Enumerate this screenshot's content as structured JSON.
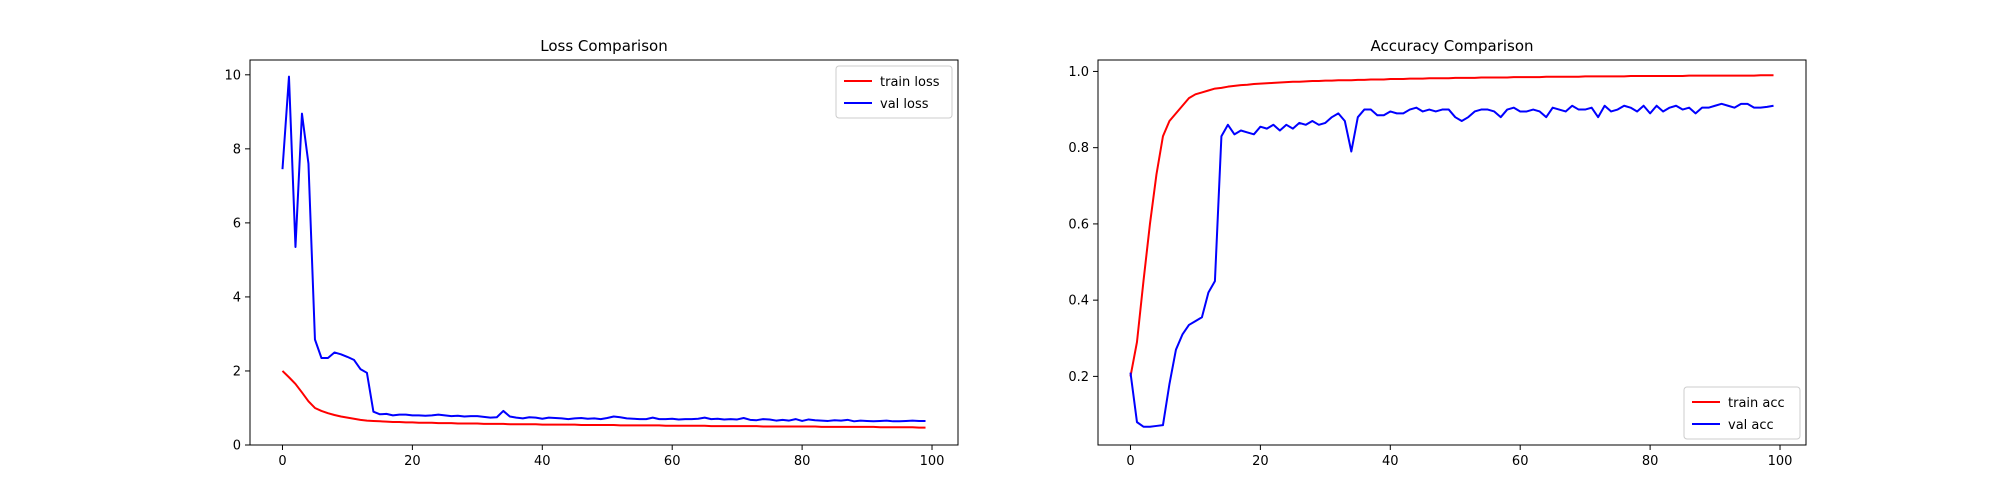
{
  "chart_data": [
    {
      "type": "line",
      "title": "Loss Comparison",
      "xlabel": "",
      "ylabel": "",
      "xlim": [
        -5,
        104
      ],
      "ylim": [
        0,
        10.4
      ],
      "xticks": [
        0,
        20,
        40,
        60,
        80,
        100
      ],
      "yticks": [
        0,
        2,
        4,
        6,
        8,
        10
      ],
      "legend_position": "top-right",
      "grid": false,
      "x": [
        0,
        1,
        2,
        3,
        4,
        5,
        6,
        7,
        8,
        9,
        10,
        11,
        12,
        13,
        14,
        15,
        16,
        17,
        18,
        19,
        20,
        21,
        22,
        23,
        24,
        25,
        26,
        27,
        28,
        29,
        30,
        31,
        32,
        33,
        34,
        35,
        36,
        37,
        38,
        39,
        40,
        41,
        42,
        43,
        44,
        45,
        46,
        47,
        48,
        49,
        50,
        51,
        52,
        53,
        54,
        55,
        56,
        57,
        58,
        59,
        60,
        61,
        62,
        63,
        64,
        65,
        66,
        67,
        68,
        69,
        70,
        71,
        72,
        73,
        74,
        75,
        76,
        77,
        78,
        79,
        80,
        81,
        82,
        83,
        84,
        85,
        86,
        87,
        88,
        89,
        90,
        91,
        92,
        93,
        94,
        95,
        96,
        97,
        98,
        99
      ],
      "series": [
        {
          "name": "train loss",
          "color": "#ff0000",
          "values": [
            2.0,
            1.83,
            1.65,
            1.42,
            1.18,
            1.0,
            0.92,
            0.86,
            0.81,
            0.77,
            0.74,
            0.71,
            0.68,
            0.66,
            0.65,
            0.64,
            0.63,
            0.62,
            0.62,
            0.61,
            0.61,
            0.6,
            0.6,
            0.6,
            0.59,
            0.59,
            0.59,
            0.58,
            0.58,
            0.58,
            0.58,
            0.57,
            0.57,
            0.57,
            0.57,
            0.56,
            0.56,
            0.56,
            0.56,
            0.56,
            0.55,
            0.55,
            0.55,
            0.55,
            0.55,
            0.55,
            0.54,
            0.54,
            0.54,
            0.54,
            0.54,
            0.54,
            0.53,
            0.53,
            0.53,
            0.53,
            0.53,
            0.53,
            0.53,
            0.52,
            0.52,
            0.52,
            0.52,
            0.52,
            0.52,
            0.52,
            0.51,
            0.51,
            0.51,
            0.51,
            0.51,
            0.51,
            0.51,
            0.51,
            0.5,
            0.5,
            0.5,
            0.5,
            0.5,
            0.5,
            0.5,
            0.5,
            0.5,
            0.49,
            0.49,
            0.49,
            0.49,
            0.49,
            0.49,
            0.49,
            0.49,
            0.49,
            0.48,
            0.48,
            0.48,
            0.48,
            0.48,
            0.48,
            0.47,
            0.47
          ]
        },
        {
          "name": "val loss",
          "color": "#0000ff",
          "values": [
            7.45,
            9.95,
            5.35,
            8.95,
            7.6,
            2.85,
            2.35,
            2.35,
            2.5,
            2.45,
            2.38,
            2.3,
            2.05,
            1.95,
            0.9,
            0.83,
            0.84,
            0.8,
            0.82,
            0.82,
            0.8,
            0.8,
            0.79,
            0.8,
            0.82,
            0.8,
            0.78,
            0.79,
            0.77,
            0.78,
            0.78,
            0.76,
            0.74,
            0.75,
            0.92,
            0.77,
            0.74,
            0.72,
            0.75,
            0.74,
            0.71,
            0.74,
            0.73,
            0.72,
            0.7,
            0.72,
            0.73,
            0.71,
            0.72,
            0.7,
            0.73,
            0.77,
            0.75,
            0.72,
            0.71,
            0.7,
            0.7,
            0.74,
            0.7,
            0.7,
            0.71,
            0.69,
            0.7,
            0.7,
            0.71,
            0.74,
            0.7,
            0.71,
            0.69,
            0.7,
            0.69,
            0.73,
            0.68,
            0.67,
            0.7,
            0.69,
            0.66,
            0.68,
            0.66,
            0.7,
            0.65,
            0.69,
            0.67,
            0.66,
            0.65,
            0.67,
            0.66,
            0.68,
            0.64,
            0.66,
            0.65,
            0.64,
            0.65,
            0.66,
            0.64,
            0.64,
            0.65,
            0.66,
            0.65,
            0.65
          ]
        }
      ]
    },
    {
      "type": "line",
      "title": "Accuracy Comparison",
      "xlabel": "",
      "ylabel": "",
      "xlim": [
        -5,
        104
      ],
      "ylim": [
        0.02,
        1.03
      ],
      "xticks": [
        0,
        20,
        40,
        60,
        80,
        100
      ],
      "yticks": [
        0.2,
        0.4,
        0.6,
        0.8,
        1.0
      ],
      "ytick_labels": [
        "0.2",
        "0.4",
        "0.6",
        "0.8",
        "1.0"
      ],
      "legend_position": "bottom-right",
      "grid": false,
      "x": [
        0,
        1,
        2,
        3,
        4,
        5,
        6,
        7,
        8,
        9,
        10,
        11,
        12,
        13,
        14,
        15,
        16,
        17,
        18,
        19,
        20,
        21,
        22,
        23,
        24,
        25,
        26,
        27,
        28,
        29,
        30,
        31,
        32,
        33,
        34,
        35,
        36,
        37,
        38,
        39,
        40,
        41,
        42,
        43,
        44,
        45,
        46,
        47,
        48,
        49,
        50,
        51,
        52,
        53,
        54,
        55,
        56,
        57,
        58,
        59,
        60,
        61,
        62,
        63,
        64,
        65,
        66,
        67,
        68,
        69,
        70,
        71,
        72,
        73,
        74,
        75,
        76,
        77,
        78,
        79,
        80,
        81,
        82,
        83,
        84,
        85,
        86,
        87,
        88,
        89,
        90,
        91,
        92,
        93,
        94,
        95,
        96,
        97,
        98,
        99
      ],
      "series": [
        {
          "name": "train acc",
          "color": "#ff0000",
          "values": [
            0.2,
            0.29,
            0.45,
            0.6,
            0.73,
            0.83,
            0.87,
            0.89,
            0.91,
            0.93,
            0.94,
            0.945,
            0.95,
            0.955,
            0.957,
            0.96,
            0.962,
            0.964,
            0.965,
            0.967,
            0.968,
            0.969,
            0.97,
            0.971,
            0.972,
            0.973,
            0.973,
            0.974,
            0.975,
            0.975,
            0.976,
            0.976,
            0.977,
            0.977,
            0.977,
            0.978,
            0.978,
            0.979,
            0.979,
            0.979,
            0.98,
            0.98,
            0.98,
            0.981,
            0.981,
            0.981,
            0.982,
            0.982,
            0.982,
            0.982,
            0.983,
            0.983,
            0.983,
            0.983,
            0.984,
            0.984,
            0.984,
            0.984,
            0.984,
            0.985,
            0.985,
            0.985,
            0.985,
            0.985,
            0.986,
            0.986,
            0.986,
            0.986,
            0.986,
            0.986,
            0.987,
            0.987,
            0.987,
            0.987,
            0.987,
            0.987,
            0.987,
            0.988,
            0.988,
            0.988,
            0.988,
            0.988,
            0.988,
            0.988,
            0.988,
            0.988,
            0.989,
            0.989,
            0.989,
            0.989,
            0.989,
            0.989,
            0.989,
            0.989,
            0.989,
            0.989,
            0.989,
            0.99,
            0.99,
            0.99
          ]
        },
        {
          "name": "val acc",
          "color": "#0000ff",
          "values": [
            0.21,
            0.08,
            0.068,
            0.068,
            0.07,
            0.072,
            0.18,
            0.27,
            0.31,
            0.335,
            0.345,
            0.355,
            0.42,
            0.45,
            0.83,
            0.86,
            0.835,
            0.845,
            0.84,
            0.835,
            0.855,
            0.85,
            0.86,
            0.845,
            0.86,
            0.85,
            0.865,
            0.86,
            0.87,
            0.86,
            0.865,
            0.88,
            0.89,
            0.87,
            0.79,
            0.88,
            0.9,
            0.9,
            0.885,
            0.885,
            0.895,
            0.89,
            0.89,
            0.9,
            0.905,
            0.895,
            0.9,
            0.895,
            0.9,
            0.9,
            0.88,
            0.87,
            0.88,
            0.895,
            0.9,
            0.9,
            0.895,
            0.88,
            0.9,
            0.905,
            0.895,
            0.895,
            0.9,
            0.895,
            0.88,
            0.905,
            0.9,
            0.895,
            0.91,
            0.9,
            0.9,
            0.905,
            0.88,
            0.91,
            0.895,
            0.9,
            0.91,
            0.905,
            0.895,
            0.91,
            0.89,
            0.91,
            0.895,
            0.905,
            0.91,
            0.9,
            0.905,
            0.89,
            0.905,
            0.905,
            0.91,
            0.915,
            0.91,
            0.905,
            0.915,
            0.915,
            0.905,
            0.905,
            0.907,
            0.91
          ]
        }
      ]
    }
  ]
}
